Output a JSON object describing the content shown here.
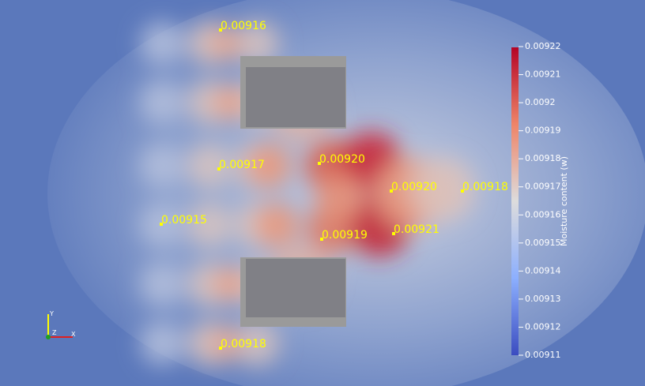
{
  "probes": [
    {
      "value": "0.00916"
    },
    {
      "value": "0.00917"
    },
    {
      "value": "0.00920"
    },
    {
      "value": "0.00920"
    },
    {
      "value": "0.00918"
    },
    {
      "value": "0.00915"
    },
    {
      "value": "0.00919"
    },
    {
      "value": "0.00921"
    },
    {
      "value": "0.00918"
    }
  ],
  "colorbar": {
    "title": "Moisture content (w)",
    "ticks": [
      "0.00922",
      "0.00921",
      "0.0092",
      "0.00919",
      "0.00918",
      "0.00917",
      "0.00916",
      "0.00915",
      "0.00914",
      "0.00913",
      "0.00912",
      "0.00911"
    ]
  },
  "axes": {
    "x": "X",
    "y": "Y",
    "z": "Z"
  }
}
